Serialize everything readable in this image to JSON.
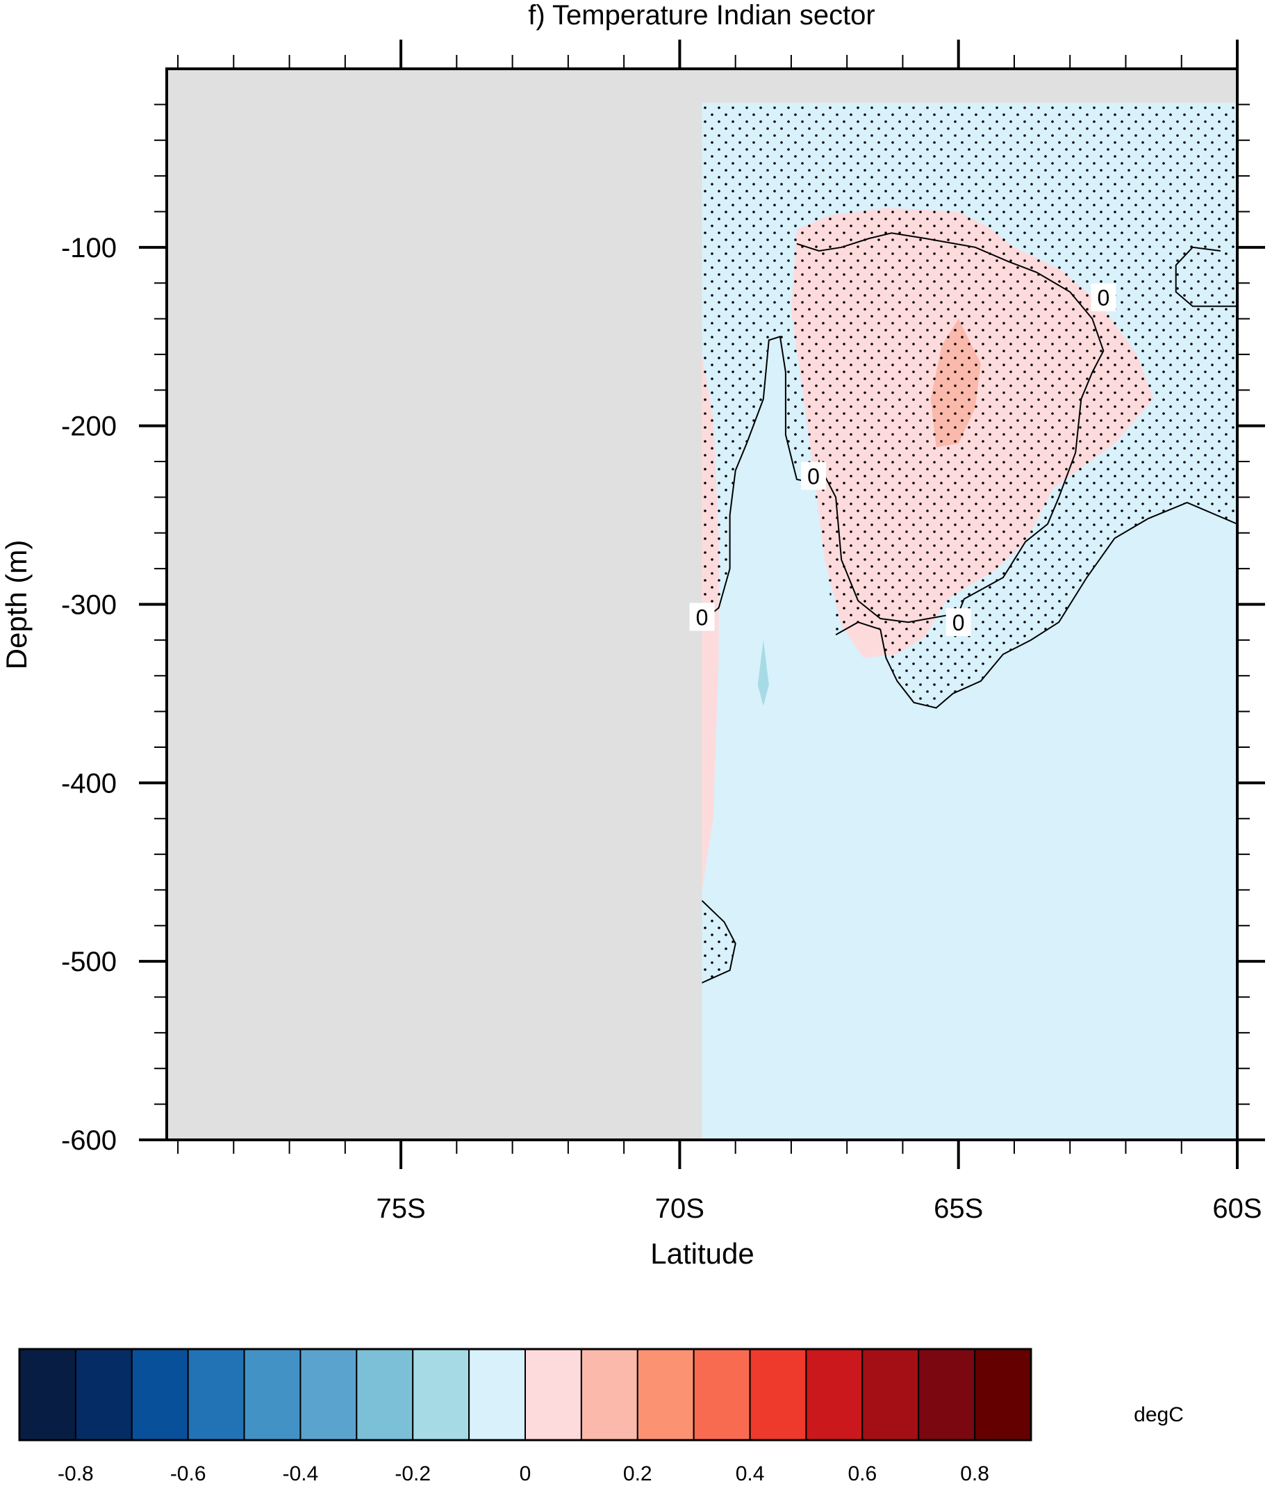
{
  "chart_data": {
    "type": "contour",
    "title": "f) Temperature Indian sector",
    "xlabel": "Latitude",
    "ylabel": "Depth (m)",
    "xlim": [
      -79.2,
      -60
    ],
    "ylim": [
      -600,
      0
    ],
    "x_ticks": [
      {
        "value": -75,
        "label": "75S"
      },
      {
        "value": -70,
        "label": "70S"
      },
      {
        "value": -65,
        "label": "65S"
      },
      {
        "value": -60,
        "label": "60S"
      }
    ],
    "y_ticks": [
      {
        "value": -100,
        "label": "-100"
      },
      {
        "value": -200,
        "label": "-200"
      },
      {
        "value": -300,
        "label": "-300"
      },
      {
        "value": -400,
        "label": "-400"
      },
      {
        "value": -500,
        "label": "-500"
      },
      {
        "value": -600,
        "label": "-600"
      }
    ],
    "missing_region": {
      "description": "land / no data",
      "x_range": [
        -79.2,
        -69.6
      ],
      "color": "#e0e0e0"
    },
    "contour_line_label": "0",
    "contour_label_positions": [
      [
        -62.4,
        -128
      ],
      [
        -67.6,
        -228
      ],
      [
        -69.6,
        -307
      ],
      [
        -65.0,
        -310
      ]
    ],
    "fill_regions": [
      {
        "level": "0 to 0.1",
        "color": "#fddbdd",
        "outline": [
          [
            -67.9,
            -90
          ],
          [
            -67.3,
            -82
          ],
          [
            -66.3,
            -78
          ],
          [
            -65.0,
            -80
          ],
          [
            -64.5,
            -88
          ],
          [
            -64.0,
            -100
          ],
          [
            -63.2,
            -112
          ],
          [
            -62.5,
            -130
          ],
          [
            -61.8,
            -160
          ],
          [
            -61.5,
            -185
          ],
          [
            -62.2,
            -210
          ],
          [
            -63.3,
            -235
          ],
          [
            -63.8,
            -265
          ],
          [
            -64.3,
            -280
          ],
          [
            -65.2,
            -297
          ],
          [
            -65.6,
            -318
          ],
          [
            -66.1,
            -328
          ],
          [
            -66.7,
            -330
          ],
          [
            -67.1,
            -312
          ],
          [
            -67.4,
            -275
          ],
          [
            -67.6,
            -225
          ],
          [
            -67.8,
            -180
          ],
          [
            -68.0,
            -135
          ]
        ]
      },
      {
        "level": "0 to 0.1",
        "color": "#fddbdd",
        "outline": [
          [
            -69.6,
            -160
          ],
          [
            -69.4,
            -195
          ],
          [
            -69.3,
            -260
          ],
          [
            -69.3,
            -330
          ],
          [
            -69.4,
            -420
          ],
          [
            -69.6,
            -460
          ]
        ]
      },
      {
        "level": "0.1 to 0.2",
        "color": "#fab9ab",
        "outline": [
          [
            -65.3,
            -155
          ],
          [
            -65.0,
            -140
          ],
          [
            -64.6,
            -165
          ],
          [
            -64.7,
            -190
          ],
          [
            -65.0,
            -210
          ],
          [
            -65.4,
            -212
          ],
          [
            -65.5,
            -185
          ]
        ]
      },
      {
        "level": "-0.1 to 0",
        "color": "#d8f1fb",
        "outline": [
          [
            -69.6,
            -19
          ],
          [
            -60,
            -19
          ],
          [
            -60,
            -600
          ],
          [
            -69.6,
            -600
          ]
        ]
      },
      {
        "level": "-0.2 to -0.1",
        "color": "#a6dbe5",
        "outline": [
          [
            -68.5,
            -320
          ],
          [
            -68.6,
            -345
          ],
          [
            -68.5,
            -357
          ],
          [
            -68.4,
            -345
          ]
        ]
      }
    ],
    "zero_contours": [
      [
        [
          -67.9,
          -98
        ],
        [
          -67.5,
          -102
        ],
        [
          -67.1,
          -100
        ],
        [
          -66.6,
          -95
        ],
        [
          -66.2,
          -92
        ],
        [
          -65.6,
          -95
        ],
        [
          -64.7,
          -100
        ],
        [
          -64.1,
          -108
        ],
        [
          -63.6,
          -114
        ],
        [
          -63.0,
          -125
        ],
        [
          -62.6,
          -140
        ],
        [
          -62.4,
          -158
        ],
        [
          -62.6,
          -170
        ],
        [
          -62.8,
          -185
        ],
        [
          -62.9,
          -215
        ],
        [
          -63.2,
          -240
        ],
        [
          -63.4,
          -255
        ],
        [
          -63.8,
          -265
        ],
        [
          -64.2,
          -285
        ],
        [
          -64.9,
          -297
        ],
        [
          -65.0,
          -305
        ],
        [
          -65.9,
          -310
        ],
        [
          -66.4,
          -308
        ],
        [
          -66.8,
          -298
        ],
        [
          -67.1,
          -275
        ],
        [
          -67.2,
          -240
        ],
        [
          -67.4,
          -228
        ],
        [
          -67.5,
          -220
        ],
        [
          -67.6,
          -232
        ],
        [
          -67.9,
          -230
        ],
        [
          -68.1,
          -205
        ],
        [
          -68.1,
          -170
        ],
        [
          -68.2,
          -150
        ],
        [
          -68.4,
          -152
        ],
        [
          -68.5,
          -185
        ],
        [
          -68.8,
          -210
        ],
        [
          -69.0,
          -225
        ],
        [
          -69.1,
          -250
        ],
        [
          -69.1,
          -280
        ],
        [
          -69.3,
          -302
        ],
        [
          -69.5,
          -307
        ]
      ],
      [
        [
          -67.2,
          -317
        ],
        [
          -66.8,
          -310
        ],
        [
          -66.4,
          -314
        ],
        [
          -66.3,
          -330
        ],
        [
          -66.1,
          -343
        ],
        [
          -65.8,
          -355
        ],
        [
          -65.4,
          -358
        ],
        [
          -65.1,
          -350
        ],
        [
          -64.6,
          -343
        ],
        [
          -64.2,
          -328
        ],
        [
          -63.7,
          -320
        ],
        [
          -63.2,
          -310
        ],
        [
          -62.7,
          -285
        ],
        [
          -62.2,
          -263
        ],
        [
          -61.6,
          -252
        ],
        [
          -60.9,
          -243
        ],
        [
          -60,
          -255
        ]
      ],
      [
        [
          -60,
          -133
        ],
        [
          -60.8,
          -133
        ],
        [
          -61.1,
          -125
        ],
        [
          -61.1,
          -110
        ],
        [
          -60.8,
          -100
        ],
        [
          -60.3,
          -102
        ]
      ],
      [
        [
          -69.6,
          -466
        ],
        [
          -69.2,
          -478
        ],
        [
          -69.0,
          -490
        ],
        [
          -69.1,
          -505
        ],
        [
          -69.6,
          -512
        ]
      ]
    ],
    "significance_stipple": {
      "pattern": "dots",
      "regions": [
        [
          [
            -69.6,
            -19
          ],
          [
            -60,
            -19
          ],
          [
            -60,
            -255
          ],
          [
            -60.9,
            -243
          ],
          [
            -61.6,
            -252
          ],
          [
            -62.2,
            -263
          ],
          [
            -62.7,
            -285
          ],
          [
            -63.2,
            -310
          ],
          [
            -63.7,
            -320
          ],
          [
            -64.2,
            -328
          ],
          [
            -64.6,
            -343
          ],
          [
            -65.1,
            -350
          ],
          [
            -65.4,
            -358
          ],
          [
            -65.8,
            -355
          ],
          [
            -66.1,
            -343
          ],
          [
            -66.3,
            -330
          ],
          [
            -66.4,
            -314
          ],
          [
            -66.8,
            -310
          ],
          [
            -67.2,
            -317
          ],
          [
            -67.4,
            -275
          ],
          [
            -67.6,
            -232
          ],
          [
            -67.9,
            -230
          ],
          [
            -68.1,
            -205
          ],
          [
            -68.1,
            -170
          ],
          [
            -68.2,
            -150
          ],
          [
            -68.4,
            -152
          ],
          [
            -68.5,
            -185
          ],
          [
            -68.8,
            -210
          ],
          [
            -69.0,
            -225
          ],
          [
            -69.1,
            -250
          ],
          [
            -69.1,
            -280
          ],
          [
            -69.3,
            -302
          ],
          [
            -69.6,
            -307
          ]
        ],
        [
          [
            -69.6,
            -466
          ],
          [
            -69.2,
            -478
          ],
          [
            -69.0,
            -490
          ],
          [
            -69.1,
            -505
          ],
          [
            -69.6,
            -512
          ]
        ]
      ]
    },
    "colorbar": {
      "unit": "degC",
      "colors": [
        "#081d43",
        "#052c65",
        "#08509a",
        "#2272b6",
        "#4292c6",
        "#5ba3cf",
        "#7bc0d7",
        "#a6dbe5",
        "#d8f1fb",
        "#fddbdd",
        "#fab9ab",
        "#fb9373",
        "#f96b51",
        "#ee3a2c",
        "#ca181d",
        "#a30f15",
        "#7b0811",
        "#650000"
      ],
      "tick_labels": [
        "-0.8",
        "-0.6",
        "-0.4",
        "-0.2",
        "0",
        "0.2",
        "0.4",
        "0.6",
        "0.8"
      ],
      "tick_boundary_index": [
        1,
        3,
        5,
        7,
        9,
        11,
        13,
        15,
        17
      ]
    }
  }
}
